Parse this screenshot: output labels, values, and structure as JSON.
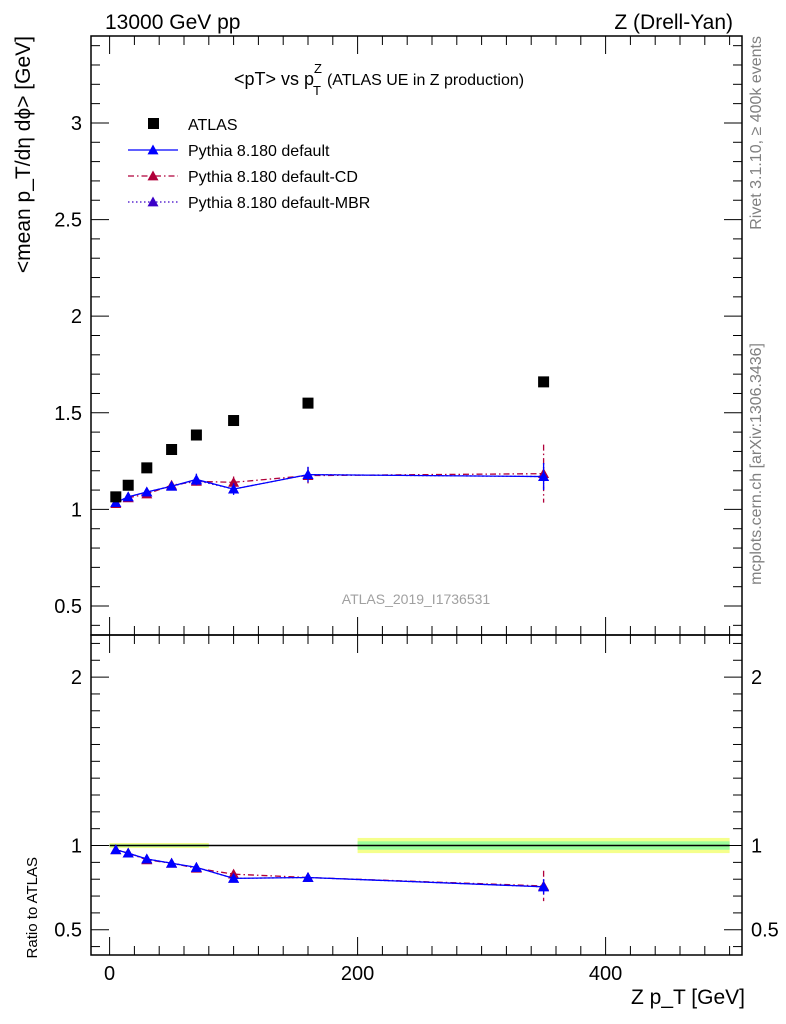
{
  "header": {
    "left": "13000 GeV pp",
    "right": "Z (Drell-Yan)"
  },
  "side_labels": {
    "rivet": "Rivet 3.1.10, ≥ 400k events",
    "mcplots": "mcplots.cern.ch [arXiv:1306.3436]"
  },
  "watermark": "ATLAS_2019_I1736531",
  "colors": {
    "atlas": "#000000",
    "default": "#0000ff",
    "cd": "#b0003a",
    "mbr": "#3b00c8",
    "band_outer": "#f5ff8c",
    "band_inner": "#9cff9c"
  },
  "chart_data": [
    {
      "type": "scatter",
      "title": {
        "pre": "<pT> vs p",
        "sup": "Z",
        "sub": "T",
        "post": "(ATLAS UE in Z production)"
      },
      "ylabel": "<mean p_T/dη dϕ> [GeV]",
      "xlim": [
        -15,
        510
      ],
      "ylim": [
        0.35,
        3.45
      ],
      "yticks": [
        0.5,
        1,
        1.5,
        2,
        2.5,
        3
      ],
      "ytick_labels": [
        "0.5",
        "1",
        "1.5",
        "2",
        "2.5",
        "3"
      ],
      "legend": {
        "placement": "top-left",
        "entries": [
          "ATLAS",
          "Pythia 8.180 default",
          "Pythia 8.180 default-CD",
          "Pythia 8.180 default-MBR"
        ]
      },
      "series": [
        {
          "name": "ATLAS",
          "style": "marker",
          "x": [
            5,
            15,
            30,
            50,
            70,
            100,
            160,
            350
          ],
          "y": [
            1.065,
            1.125,
            1.215,
            1.31,
            1.385,
            1.46,
            1.55,
            1.66
          ]
        },
        {
          "name": "Pythia 8.180 default",
          "style": "solid",
          "x": [
            5,
            15,
            30,
            50,
            70,
            100,
            160,
            350
          ],
          "y": [
            1.035,
            1.065,
            1.09,
            1.12,
            1.155,
            1.105,
            1.18,
            1.17
          ],
          "err": [
            0.01,
            0.01,
            0.01,
            0.015,
            0.03,
            0.03,
            0.04,
            0.07
          ]
        },
        {
          "name": "Pythia 8.180 default-CD",
          "style": "dashdot",
          "x": [
            5,
            15,
            30,
            50,
            70,
            100,
            160,
            350
          ],
          "y": [
            1.03,
            1.06,
            1.08,
            1.125,
            1.145,
            1.14,
            1.175,
            1.185
          ],
          "err": [
            0.01,
            0.01,
            0.01,
            0.015,
            0.02,
            0.03,
            0.04,
            0.15
          ]
        },
        {
          "name": "Pythia 8.180 default-MBR",
          "style": "dotted",
          "x": [
            5,
            15,
            30,
            50,
            70,
            100,
            160,
            350
          ],
          "y": [
            1.035,
            1.065,
            1.09,
            1.12,
            1.15,
            1.105,
            1.18,
            1.17
          ],
          "err": [
            0.01,
            0.01,
            0.01,
            0.015,
            0.03,
            0.03,
            0.04,
            0.07
          ]
        }
      ]
    },
    {
      "type": "line",
      "ylabel": "Ratio to ATLAS",
      "xlabel": "Z p_T [GeV]",
      "xlim": [
        -15,
        510
      ],
      "ylim": [
        0.35,
        2.25
      ],
      "xticks": [
        0,
        200,
        400
      ],
      "xtick_labels": [
        "0",
        "200",
        "400"
      ],
      "yticks": [
        0.5,
        1,
        2
      ],
      "ytick_labels": [
        "0.5",
        "1",
        "2"
      ],
      "bands": [
        {
          "x0": 0,
          "x1": 80,
          "outer": [
            0.985,
            1.015
          ],
          "inner": [
            0.993,
            1.007
          ]
        },
        {
          "x0": 200,
          "x1": 500,
          "outer": [
            0.955,
            1.045
          ],
          "inner": [
            0.975,
            1.025
          ]
        }
      ],
      "series": [
        {
          "name": "Pythia 8.180 default",
          "style": "solid",
          "x": [
            5,
            15,
            30,
            50,
            70,
            100,
            160,
            350
          ],
          "y": [
            0.975,
            0.955,
            0.92,
            0.895,
            0.87,
            0.805,
            0.81,
            0.755
          ],
          "err": [
            0.01,
            0.01,
            0.01,
            0.012,
            0.02,
            0.02,
            0.025,
            0.045
          ]
        },
        {
          "name": "Pythia 8.180 default-CD",
          "style": "dashdot",
          "x": [
            5,
            15,
            30,
            50,
            70,
            100,
            160,
            350
          ],
          "y": [
            0.975,
            0.955,
            0.915,
            0.895,
            0.865,
            0.83,
            0.81,
            0.76
          ],
          "err": [
            0.01,
            0.01,
            0.01,
            0.012,
            0.02,
            0.02,
            0.025,
            0.09
          ]
        },
        {
          "name": "Pythia 8.180 default-MBR",
          "style": "dotted",
          "x": [
            5,
            15,
            30,
            50,
            70,
            100,
            160,
            350
          ],
          "y": [
            0.975,
            0.955,
            0.92,
            0.895,
            0.87,
            0.805,
            0.81,
            0.755
          ],
          "err": [
            0.01,
            0.01,
            0.01,
            0.012,
            0.02,
            0.02,
            0.025,
            0.045
          ]
        }
      ]
    }
  ]
}
